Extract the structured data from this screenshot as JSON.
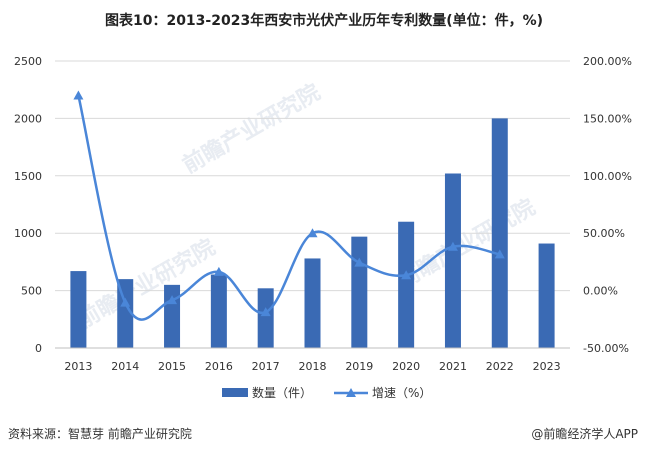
{
  "title": "图表10：2013-2023年西安市光伏产业历年专利数量(单位：件，%)",
  "footer": {
    "source": "资料来源：智慧芽 前瞻产业研究院",
    "brand": "@前瞻经济学人APP"
  },
  "watermark": "前瞻产业研究院",
  "colors": {
    "bar": "#3a6ab4",
    "line": "#4a86d8",
    "grid": "#d9d9d9",
    "axis": "#bfbfbf"
  },
  "chart_data": {
    "type": "bar",
    "categories": [
      "2013",
      "2014",
      "2015",
      "2016",
      "2017",
      "2018",
      "2019",
      "2020",
      "2021",
      "2022",
      "2023"
    ],
    "series": [
      {
        "name": "数量（件）",
        "type": "bar",
        "axis": "left",
        "values": [
          670,
          600,
          550,
          640,
          520,
          780,
          970,
          1100,
          1520,
          2000,
          910
        ]
      },
      {
        "name": "增速（%）",
        "type": "line",
        "axis": "right",
        "marker": "triangle",
        "values": [
          null,
          -10.45,
          -8.33,
          16.36,
          -18.75,
          50.0,
          24.36,
          13.4,
          38.18,
          31.58,
          null
        ]
      }
    ],
    "y_left": {
      "min": 0,
      "max": 2500,
      "ticks": [
        "0",
        "500",
        "1000",
        "1500",
        "2000",
        "2500"
      ]
    },
    "y_right": {
      "min": -50,
      "max": 200,
      "ticks": [
        "-50.00%",
        "0.00%",
        "50.00%",
        "100.00%",
        "150.00%",
        "200.00%"
      ]
    },
    "extra_points": [
      {
        "category": "2013",
        "value": 170
      }
    ],
    "legend": {
      "position": "bottom",
      "items": [
        "数量（件）",
        "增速（%）"
      ]
    },
    "grid": true
  }
}
